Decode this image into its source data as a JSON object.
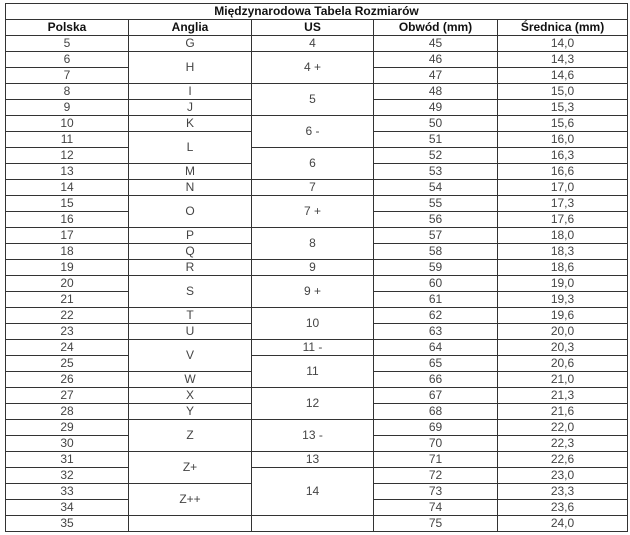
{
  "title": "Międzynarodowa Tabela Rozmiarów",
  "headers": [
    "Polska",
    "Anglia",
    "US",
    "Obwód (mm)",
    "Średnica (mm)"
  ],
  "polska": [
    "5",
    "6",
    "7",
    "8",
    "9",
    "10",
    "11",
    "12",
    "13",
    "14",
    "15",
    "16",
    "17",
    "18",
    "19",
    "20",
    "21",
    "22",
    "23",
    "24",
    "25",
    "26",
    "27",
    "28",
    "29",
    "30",
    "31",
    "32",
    "33",
    "34",
    "35"
  ],
  "obwod": [
    "45",
    "46",
    "47",
    "48",
    "49",
    "50",
    "51",
    "52",
    "53",
    "54",
    "55",
    "56",
    "57",
    "58",
    "59",
    "60",
    "61",
    "62",
    "63",
    "64",
    "65",
    "66",
    "67",
    "68",
    "69",
    "70",
    "71",
    "72",
    "73",
    "74",
    "75"
  ],
  "srednica": [
    "14,0",
    "14,3",
    "14,6",
    "15,0",
    "15,3",
    "15,6",
    "16,0",
    "16,3",
    "16,6",
    "17,0",
    "17,3",
    "17,6",
    "18,0",
    "18,3",
    "18,6",
    "19,0",
    "19,3",
    "19,6",
    "20,0",
    "20,3",
    "20,6",
    "21,0",
    "21,3",
    "21,6",
    "22,0",
    "22,3",
    "22,6",
    "23,0",
    "23,3",
    "23,6",
    "24,0"
  ],
  "anglia": [
    {
      "label": "G",
      "rows": 1
    },
    {
      "label": "H",
      "rows": 2
    },
    {
      "label": "I",
      "rows": 1
    },
    {
      "label": "J",
      "rows": 1
    },
    {
      "label": "K",
      "rows": 1
    },
    {
      "label": "L",
      "rows": 2
    },
    {
      "label": "M",
      "rows": 1
    },
    {
      "label": "N",
      "rows": 1
    },
    {
      "label": "O",
      "rows": 2
    },
    {
      "label": "P",
      "rows": 1
    },
    {
      "label": "Q",
      "rows": 1
    },
    {
      "label": "R",
      "rows": 1
    },
    {
      "label": "S",
      "rows": 2
    },
    {
      "label": "T",
      "rows": 1
    },
    {
      "label": "U",
      "rows": 1
    },
    {
      "label": "V",
      "rows": 2
    },
    {
      "label": "W",
      "rows": 1
    },
    {
      "label": "X",
      "rows": 1
    },
    {
      "label": "Y",
      "rows": 1
    },
    {
      "label": "Z",
      "rows": 2
    },
    {
      "label": "Z+",
      "rows": 2
    },
    {
      "label": "Z++",
      "rows": 2
    },
    {
      "label": "",
      "rows": 1
    }
  ],
  "us": [
    {
      "label": "4",
      "rows": 1
    },
    {
      "label": "4 +",
      "rows": 2
    },
    {
      "label": "5",
      "rows": 2
    },
    {
      "label": "6 -",
      "rows": 2
    },
    {
      "label": "6",
      "rows": 2
    },
    {
      "label": "7",
      "rows": 1
    },
    {
      "label": "7 +",
      "rows": 2
    },
    {
      "label": "8",
      "rows": 2
    },
    {
      "label": "9",
      "rows": 1
    },
    {
      "label": "9 +",
      "rows": 2
    },
    {
      "label": "10",
      "rows": 2
    },
    {
      "label": "11 -",
      "rows": 1
    },
    {
      "label": "11",
      "rows": 2
    },
    {
      "label": "12",
      "rows": 2
    },
    {
      "label": "13 -",
      "rows": 2
    },
    {
      "label": "13",
      "rows": 1
    },
    {
      "label": "14",
      "rows": 3
    },
    {
      "label": "",
      "rows": 1
    }
  ]
}
